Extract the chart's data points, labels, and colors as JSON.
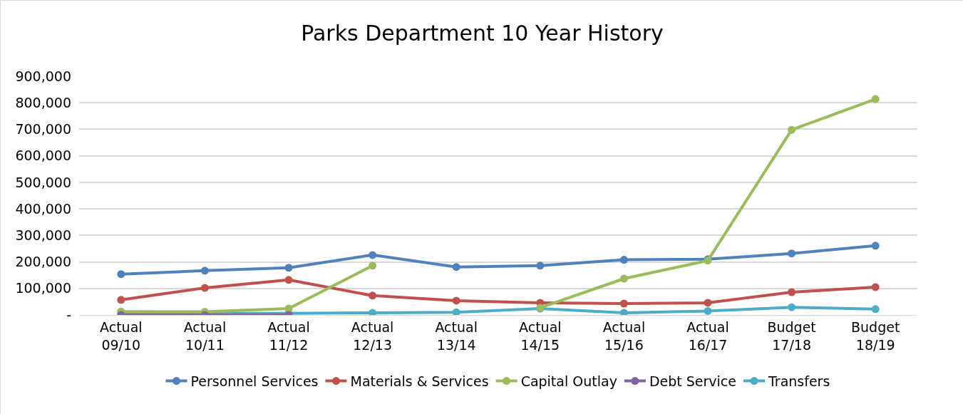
{
  "chart_data": {
    "type": "line",
    "title": "Parks Department 10 Year History",
    "categories": [
      "Actual\n09/10",
      "Actual\n10/11",
      "Actual\n11/12",
      "Actual\n12/13",
      "Actual\n13/14",
      "Actual\n14/15",
      "Actual\n15/16",
      "Actual\n16/17",
      "Budget\n17/18",
      "Budget\n18/19"
    ],
    "series": [
      {
        "name": "Personnel Services",
        "color": "#4f81bd",
        "values": [
          154000,
          167000,
          178000,
          226000,
          181000,
          186000,
          208000,
          210000,
          232000,
          261000
        ]
      },
      {
        "name": "Materials & Services",
        "color": "#c0504d",
        "values": [
          57000,
          102000,
          132000,
          73000,
          54000,
          46000,
          43000,
          46000,
          86000,
          105000
        ]
      },
      {
        "name": "Capital Outlay",
        "color": "#9bbb59",
        "values": [
          13000,
          12000,
          24000,
          186000,
          null,
          27000,
          137000,
          205000,
          698000,
          814000
        ]
      },
      {
        "name": "Debt Service",
        "color": "#8064a2",
        "values": [
          0,
          0,
          0,
          null,
          null,
          null,
          null,
          null,
          null,
          null
        ]
      },
      {
        "name": "Transfers",
        "color": "#4bacc6",
        "values": [
          6000,
          6000,
          6000,
          8000,
          10000,
          24000,
          8000,
          15000,
          29000,
          22000
        ]
      }
    ],
    "ylim": [
      0,
      900000
    ],
    "yticks": [
      {
        "value": 0,
        "label": "-"
      },
      {
        "value": 100000,
        "label": "100,000"
      },
      {
        "value": 200000,
        "label": "200,000"
      },
      {
        "value": 300000,
        "label": "300,000"
      },
      {
        "value": 400000,
        "label": "400,000"
      },
      {
        "value": 500000,
        "label": "500,000"
      },
      {
        "value": 600000,
        "label": "600,000"
      },
      {
        "value": 700000,
        "label": "700,000"
      },
      {
        "value": 800000,
        "label": "800,000"
      },
      {
        "value": 900000,
        "label": "900,000"
      }
    ],
    "grid": "y",
    "legend": "bottom",
    "marker": "circle",
    "line_style": "solid"
  }
}
